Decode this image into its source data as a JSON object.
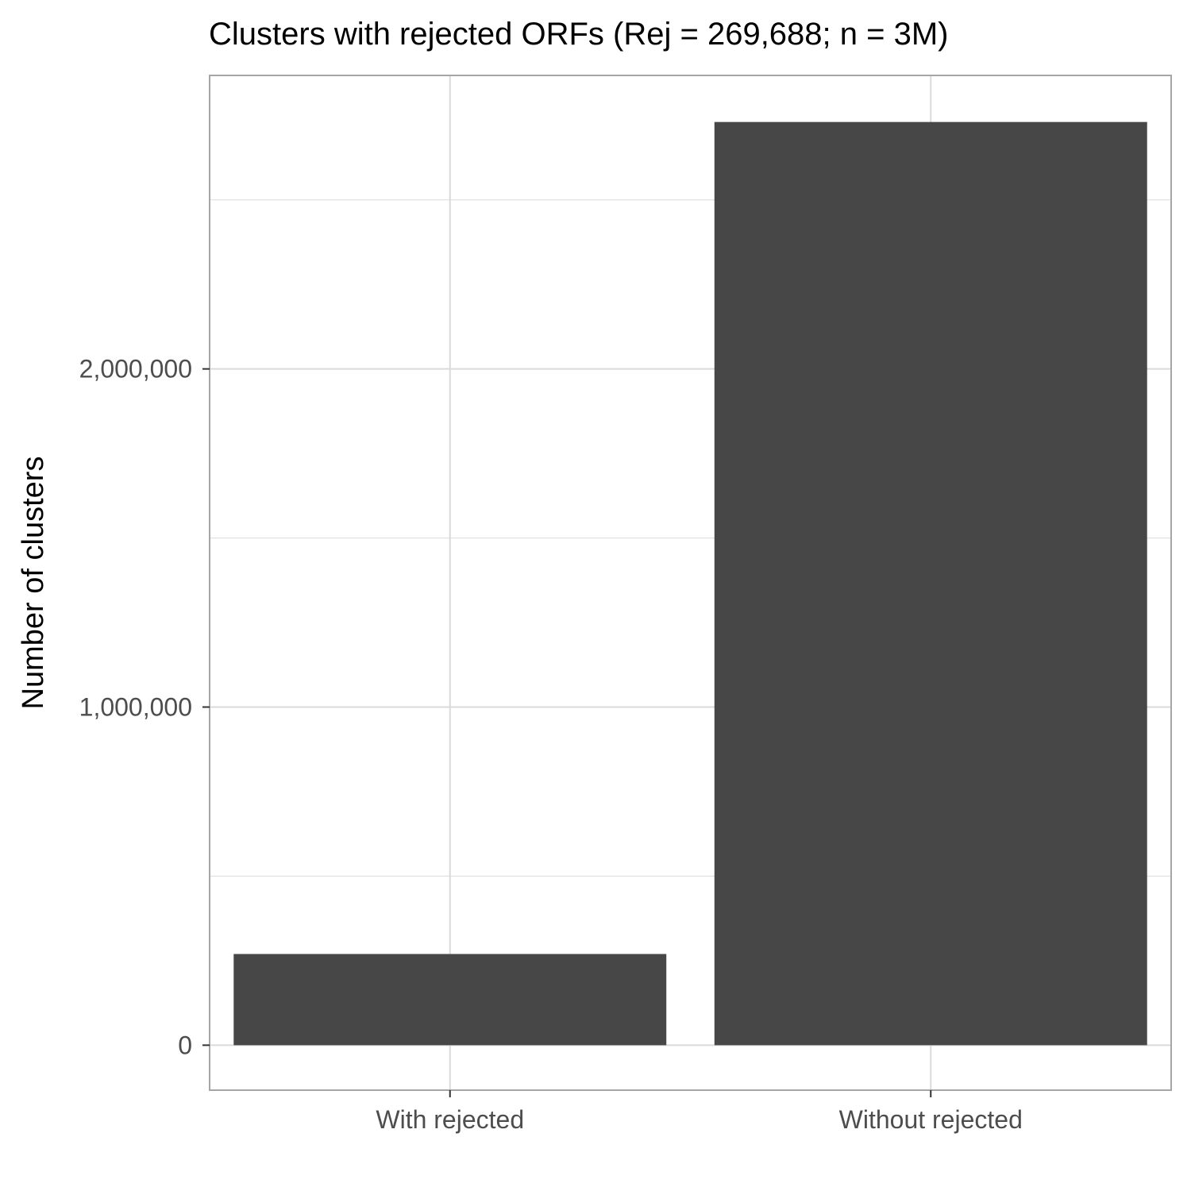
{
  "chart_data": {
    "type": "bar",
    "title": "Clusters with rejected ORFs (Rej = 269,688; n = 3M)",
    "xlabel": "",
    "ylabel": "Number of clusters",
    "categories": [
      "With rejected",
      "Without rejected"
    ],
    "values": [
      269688,
      2730312
    ],
    "ylim": [
      -133000,
      2868000
    ],
    "y_ticks": [
      0,
      1000000,
      2000000
    ],
    "y_tick_labels": [
      "0",
      "1,000,000",
      "2,000,000"
    ],
    "y_minor_ticks": [
      500000,
      1500000,
      2500000
    ],
    "grid": true,
    "legend": "none",
    "colors": {
      "bar": "#474747",
      "grid": "#dadada",
      "panel_border": "#a6a6a6",
      "tick_label": "#4d4d4d",
      "text": "#000000"
    }
  }
}
